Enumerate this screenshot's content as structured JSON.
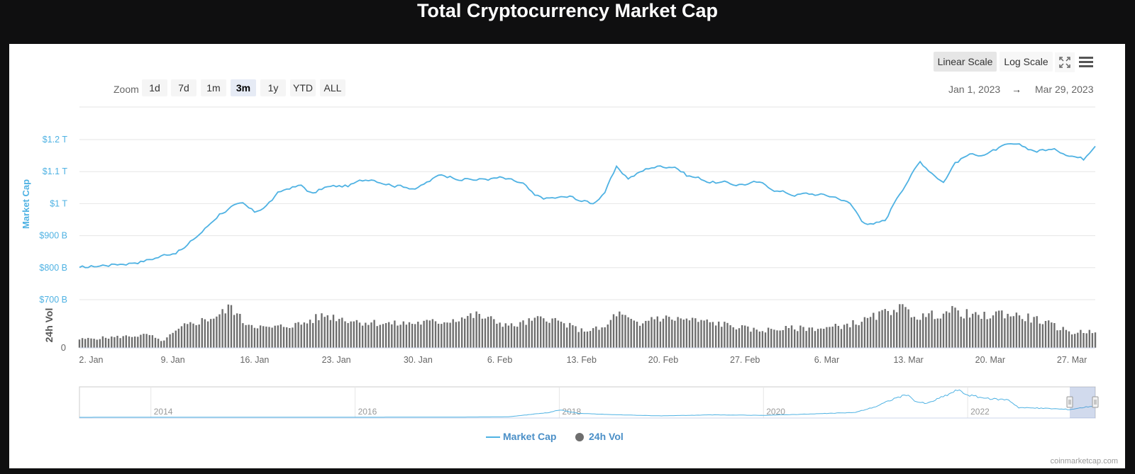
{
  "page_title": "Total Cryptocurrency Market Cap",
  "toolbar": {
    "linear_scale": "Linear Scale",
    "log_scale": "Log Scale",
    "fullscreen_icon": "fullscreen-icon",
    "menu_icon": "menu-icon"
  },
  "zoom": {
    "label": "Zoom",
    "buttons": [
      "1d",
      "7d",
      "1m",
      "3m",
      "1y",
      "YTD",
      "ALL"
    ],
    "active": "3m"
  },
  "range": {
    "from": "Jan 1, 2023",
    "arrow": "→",
    "to": "Mar 29, 2023"
  },
  "credit": "coinmarketcap.com",
  "colors": {
    "market_cap": "#4fb2e3",
    "volume": "#6e6e6e",
    "page_bg": "#0f0f10"
  },
  "chart_data": {
    "type": "line",
    "title": "Total Cryptocurrency Market Cap",
    "x_tick_labels": [
      "2. Jan",
      "9. Jan",
      "16. Jan",
      "23. Jan",
      "30. Jan",
      "6. Feb",
      "13. Feb",
      "20. Feb",
      "27. Feb",
      "6. Mar",
      "13. Mar",
      "20. Mar",
      "27. Mar"
    ],
    "x_range": [
      "2023-01-01",
      "2023-03-29"
    ],
    "y_axis": {
      "label": "Market Cap",
      "tick_labels": [
        "$700 B",
        "$800 B",
        "$900 B",
        "$1 T",
        "$1.1 T",
        "$1.2 T"
      ],
      "tick_values": [
        700,
        800,
        900,
        1000,
        1100,
        1200
      ],
      "unit": "billion USD"
    },
    "volume_axis": {
      "label": "24h Vol",
      "tick_labels": [
        "0"
      ]
    },
    "grid": true,
    "legend_position": "bottom-center",
    "series": [
      {
        "name": "Market Cap",
        "x": [
          "2023-01-01",
          "2023-01-03",
          "2023-01-05",
          "2023-01-07",
          "2023-01-09",
          "2023-01-10",
          "2023-01-11",
          "2023-01-12",
          "2023-01-13",
          "2023-01-14",
          "2023-01-15",
          "2023-01-16",
          "2023-01-17",
          "2023-01-18",
          "2023-01-19",
          "2023-01-20",
          "2023-01-21",
          "2023-01-22",
          "2023-01-24",
          "2023-01-26",
          "2023-01-28",
          "2023-01-30",
          "2023-02-01",
          "2023-02-02",
          "2023-02-04",
          "2023-02-06",
          "2023-02-08",
          "2023-02-09",
          "2023-02-10",
          "2023-02-12",
          "2023-02-14",
          "2023-02-15",
          "2023-02-16",
          "2023-02-17",
          "2023-02-19",
          "2023-02-21",
          "2023-02-22",
          "2023-02-24",
          "2023-02-26",
          "2023-02-28",
          "2023-03-02",
          "2023-03-03",
          "2023-03-05",
          "2023-03-07",
          "2023-03-08",
          "2023-03-09",
          "2023-03-10",
          "2023-03-11",
          "2023-03-12",
          "2023-03-13",
          "2023-03-14",
          "2023-03-15",
          "2023-03-16",
          "2023-03-17",
          "2023-03-18",
          "2023-03-20",
          "2023-03-21",
          "2023-03-22",
          "2023-03-24",
          "2023-03-25",
          "2023-03-27",
          "2023-03-28",
          "2023-03-29"
        ],
        "values": [
          797,
          808,
          815,
          826,
          848,
          862,
          895,
          930,
          970,
          990,
          995,
          970,
          995,
          1030,
          1050,
          1055,
          1030,
          1050,
          1055,
          1080,
          1060,
          1050,
          1090,
          1085,
          1075,
          1080,
          1060,
          1020,
          1015,
          1020,
          1000,
          1040,
          1110,
          1080,
          1115,
          1120,
          1090,
          1070,
          1060,
          1065,
          1040,
          1030,
          1030,
          1020,
          1000,
          950,
          935,
          945,
          1020,
          1080,
          1130,
          1100,
          1070,
          1130,
          1150,
          1160,
          1175,
          1180,
          1165,
          1170,
          1155,
          1140,
          1190
        ]
      },
      {
        "name": "24h Vol",
        "x": [
          "2023-01-01",
          "2023-01-04",
          "2023-01-07",
          "2023-01-08",
          "2023-01-10",
          "2023-01-13",
          "2023-01-14",
          "2023-01-15",
          "2023-01-17",
          "2023-01-20",
          "2023-01-22",
          "2023-01-25",
          "2023-01-28",
          "2023-02-01",
          "2023-02-04",
          "2023-02-07",
          "2023-02-10",
          "2023-02-13",
          "2023-02-15",
          "2023-02-16",
          "2023-02-18",
          "2023-02-19",
          "2023-02-22",
          "2023-02-25",
          "2023-02-28",
          "2023-03-03",
          "2023-03-06",
          "2023-03-09",
          "2023-03-11",
          "2023-03-12",
          "2023-03-14",
          "2023-03-17",
          "2023-03-19",
          "2023-03-21",
          "2023-03-24",
          "2023-03-27",
          "2023-03-29"
        ],
        "values": [
          0.2,
          0.25,
          0.3,
          0.15,
          0.5,
          0.75,
          0.95,
          0.6,
          0.45,
          0.55,
          0.75,
          0.6,
          0.55,
          0.6,
          0.75,
          0.5,
          0.7,
          0.4,
          0.45,
          0.8,
          0.5,
          0.7,
          0.65,
          0.55,
          0.4,
          0.45,
          0.45,
          0.6,
          0.8,
          0.95,
          0.7,
          0.85,
          0.7,
          0.8,
          0.65,
          0.35,
          0.4
        ]
      }
    ],
    "navigator": {
      "tick_labels": [
        "2014",
        "2016",
        "2018",
        "2020",
        "2022"
      ],
      "x": [
        2013.3,
        2014.0,
        2015.0,
        2016.0,
        2017.0,
        2017.5,
        2017.9,
        2018.0,
        2018.2,
        2018.5,
        2019.0,
        2019.5,
        2020.0,
        2020.5,
        2020.9,
        2021.0,
        2021.1,
        2021.3,
        2021.4,
        2021.5,
        2021.6,
        2021.8,
        2021.9,
        2022.0,
        2022.2,
        2022.4,
        2022.5,
        2022.8,
        2023.0,
        2023.25
      ],
      "values": [
        2,
        10,
        5,
        8,
        18,
        50,
        500,
        750,
        400,
        280,
        150,
        250,
        200,
        350,
        500,
        800,
        1100,
        2000,
        2300,
        1600,
        1400,
        2300,
        2800,
        2300,
        1900,
        1800,
        1000,
        900,
        800,
        1200
      ],
      "selected_range": [
        "2023-01-01",
        "2023-03-29"
      ]
    }
  },
  "legend": {
    "items": [
      "Market Cap",
      "24h Vol"
    ]
  }
}
